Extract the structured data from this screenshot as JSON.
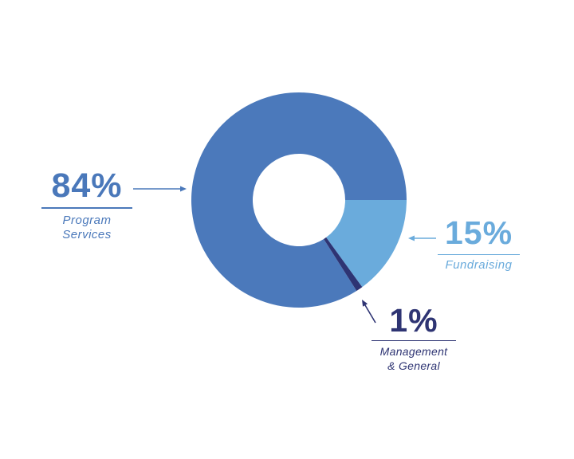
{
  "chart_data": {
    "type": "pie",
    "style": "donut",
    "slices": [
      {
        "label": "Program Services",
        "value": 84,
        "display": "84%",
        "color": "#4b79bb"
      },
      {
        "label": "Fundraising",
        "value": 15,
        "display": "15%",
        "color": "#6aabdc"
      },
      {
        "label": "Management & General",
        "value": 1,
        "display": "1%",
        "color": "#2e3473"
      }
    ]
  },
  "callouts": {
    "program": {
      "pct": "84%",
      "line1": "Program",
      "line2": "Services"
    },
    "fundraising": {
      "pct": "15%",
      "line1": "Fundraising"
    },
    "management": {
      "pct": "1%",
      "line1": "Management",
      "line2": "& General"
    }
  }
}
